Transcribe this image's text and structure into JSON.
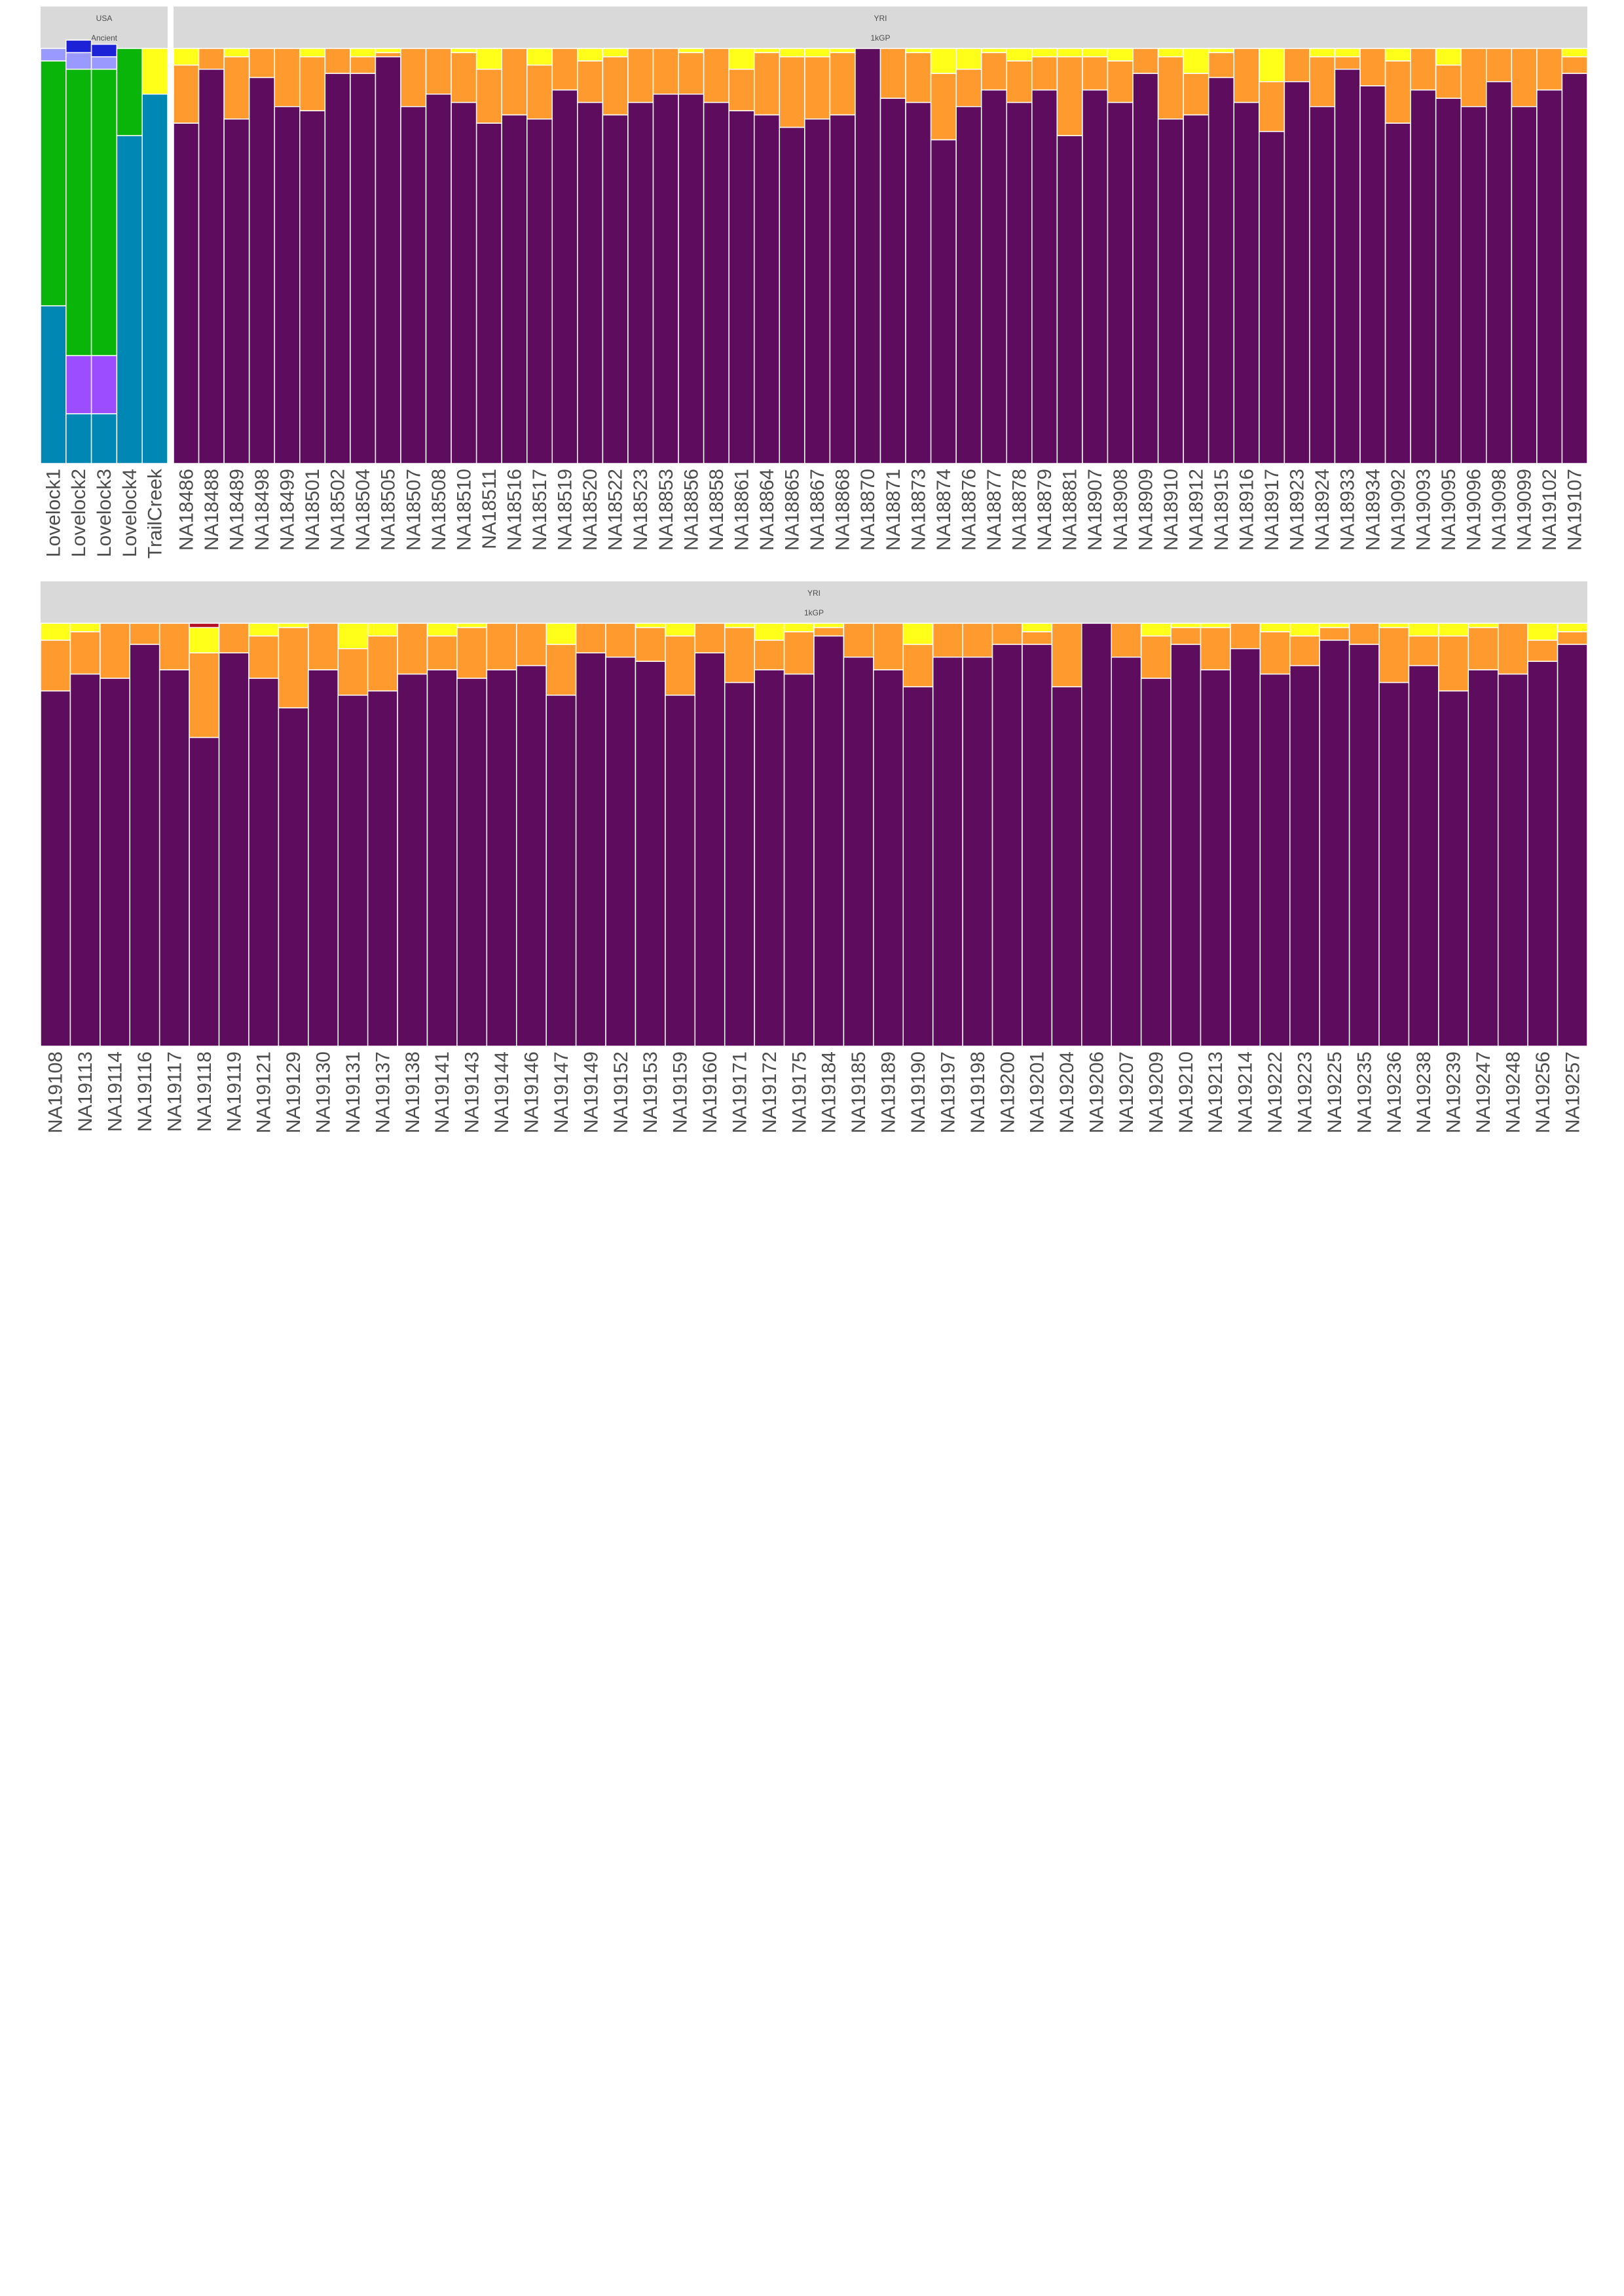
{
  "chart_data": {
    "type": "bar",
    "stacked": true,
    "normalized": true,
    "component_colors": {
      "lightblue": "#9999ff",
      "blue": "#1e22d6",
      "lavender": "#9999ff",
      "violet": "#9b4dff",
      "green": "#0ab50a",
      "teal": "#0187b4",
      "purple": "#5e0c5e",
      "orange": "#ff9a2e",
      "yellow": "#ffff1a",
      "red": "#b30e21"
    },
    "panels": [
      {
        "row": 0,
        "strip_top": "USA",
        "strip_bottom": "Ancient",
        "stack_order": [
          "teal",
          "violet",
          "green",
          "lavender",
          "blue",
          "yellow"
        ],
        "bars": [
          {
            "id": "Lovelock1",
            "teal": 0.38,
            "violet": 0,
            "green": 0.59,
            "lavender": 0.03,
            "blue": 0,
            "yellow": 0
          },
          {
            "id": "Lovelock2",
            "teal": 0.12,
            "violet": 0.14,
            "green": 0.69,
            "lavender": 0.04,
            "blue": 0.03,
            "yellow": 0
          },
          {
            "id": "Lovelock3",
            "teal": 0.12,
            "violet": 0.14,
            "green": 0.69,
            "lavender": 0.03,
            "blue": 0.03,
            "yellow": 0
          },
          {
            "id": "Lovelock4",
            "teal": 0.79,
            "violet": 0,
            "green": 0.21,
            "lavender": 0,
            "blue": 0,
            "yellow": 0
          },
          {
            "id": "TrailCreek",
            "teal": 0.89,
            "violet": 0,
            "green": 0,
            "lavender": 0,
            "blue": 0,
            "yellow": 0.11
          }
        ]
      },
      {
        "row": 0,
        "strip_top": "YRI",
        "strip_bottom": "1kGP",
        "stack_order": [
          "purple",
          "orange",
          "yellow"
        ],
        "bars": [
          {
            "id": "NA18486",
            "purple": 0.82,
            "orange": 0.14
          },
          {
            "id": "NA18488",
            "purple": 0.95,
            "orange": 0.05
          },
          {
            "id": "NA18489",
            "purple": 0.83,
            "orange": 0.15
          },
          {
            "id": "NA18498",
            "purple": 0.93,
            "orange": 0.07
          },
          {
            "id": "NA18499",
            "purple": 0.86,
            "orange": 0.14
          },
          {
            "id": "NA18501",
            "purple": 0.85,
            "orange": 0.13
          },
          {
            "id": "NA18502",
            "purple": 0.94,
            "orange": 0.06
          },
          {
            "id": "NA18504",
            "purple": 0.94,
            "orange": 0.04
          },
          {
            "id": "NA18505",
            "purple": 0.98,
            "orange": 0.01
          },
          {
            "id": "NA18507",
            "purple": 0.86,
            "orange": 0.14
          },
          {
            "id": "NA18508",
            "purple": 0.89,
            "orange": 0.11
          },
          {
            "id": "NA18510",
            "purple": 0.87,
            "orange": 0.12
          },
          {
            "id": "NA18511",
            "purple": 0.82,
            "orange": 0.13
          },
          {
            "id": "NA18516",
            "purple": 0.84,
            "orange": 0.16
          },
          {
            "id": "NA18517",
            "purple": 0.83,
            "orange": 0.13
          },
          {
            "id": "NA18519",
            "purple": 0.9,
            "orange": 0.1
          },
          {
            "id": "NA18520",
            "purple": 0.87,
            "orange": 0.1
          },
          {
            "id": "NA18522",
            "purple": 0.84,
            "orange": 0.14
          },
          {
            "id": "NA18523",
            "purple": 0.87,
            "orange": 0.13
          },
          {
            "id": "NA18853",
            "purple": 0.89,
            "orange": 0.11
          },
          {
            "id": "NA18856",
            "purple": 0.89,
            "orange": 0.1
          },
          {
            "id": "NA18858",
            "purple": 0.87,
            "orange": 0.13
          },
          {
            "id": "NA18861",
            "purple": 0.85,
            "orange": 0.1
          },
          {
            "id": "NA18864",
            "purple": 0.84,
            "orange": 0.15
          },
          {
            "id": "NA18865",
            "purple": 0.81,
            "orange": 0.17
          },
          {
            "id": "NA18867",
            "purple": 0.83,
            "orange": 0.15
          },
          {
            "id": "NA18868",
            "purple": 0.84,
            "orange": 0.15
          },
          {
            "id": "NA18870",
            "purple": 1.0,
            "orange": 0
          },
          {
            "id": "NA18871",
            "purple": 0.88,
            "orange": 0.12
          },
          {
            "id": "NA18873",
            "purple": 0.87,
            "orange": 0.12
          },
          {
            "id": "NA18874",
            "purple": 0.78,
            "orange": 0.16
          },
          {
            "id": "NA18876",
            "purple": 0.86,
            "orange": 0.09
          },
          {
            "id": "NA18877",
            "purple": 0.9,
            "orange": 0.09
          },
          {
            "id": "NA18878",
            "purple": 0.87,
            "orange": 0.1
          },
          {
            "id": "NA18879",
            "purple": 0.9,
            "orange": 0.08
          },
          {
            "id": "NA18881",
            "purple": 0.79,
            "orange": 0.19
          },
          {
            "id": "NA18907",
            "purple": 0.9,
            "orange": 0.08
          },
          {
            "id": "NA18908",
            "purple": 0.87,
            "orange": 0.1
          },
          {
            "id": "NA18909",
            "purple": 0.94,
            "orange": 0.06
          },
          {
            "id": "NA18910",
            "purple": 0.83,
            "orange": 0.15
          },
          {
            "id": "NA18912",
            "purple": 0.84,
            "orange": 0.1
          },
          {
            "id": "NA18915",
            "purple": 0.93,
            "orange": 0.06
          },
          {
            "id": "NA18916",
            "purple": 0.87,
            "orange": 0.13
          },
          {
            "id": "NA18917",
            "purple": 0.8,
            "orange": 0.12
          },
          {
            "id": "NA18923",
            "purple": 0.92,
            "orange": 0.08
          },
          {
            "id": "NA18924",
            "purple": 0.86,
            "orange": 0.12
          },
          {
            "id": "NA18933",
            "purple": 0.95,
            "orange": 0.03
          },
          {
            "id": "NA18934",
            "purple": 0.91,
            "orange": 0.09
          },
          {
            "id": "NA19092",
            "purple": 0.82,
            "orange": 0.15
          },
          {
            "id": "NA19093",
            "purple": 0.9,
            "orange": 0.1
          },
          {
            "id": "NA19095",
            "purple": 0.88,
            "orange": 0.08
          },
          {
            "id": "NA19096",
            "purple": 0.86,
            "orange": 0.14
          },
          {
            "id": "NA19098",
            "purple": 0.92,
            "orange": 0.08
          },
          {
            "id": "NA19099",
            "purple": 0.86,
            "orange": 0.14
          },
          {
            "id": "NA19102",
            "purple": 0.9,
            "orange": 0.1
          },
          {
            "id": "NA19107",
            "purple": 0.94,
            "orange": 0.04
          }
        ]
      },
      {
        "row": 1,
        "strip_top": "YRI",
        "strip_bottom": "1kGP",
        "stack_order": [
          "purple",
          "orange",
          "yellow",
          "red"
        ],
        "bars": [
          {
            "id": "NA19108",
            "purple": 0.84,
            "orange": 0.12
          },
          {
            "id": "NA19113",
            "purple": 0.88,
            "orange": 0.1
          },
          {
            "id": "NA19114",
            "purple": 0.87,
            "orange": 0.13
          },
          {
            "id": "NA19116",
            "purple": 0.95,
            "orange": 0.05
          },
          {
            "id": "NA19117",
            "purple": 0.89,
            "orange": 0.11
          },
          {
            "id": "NA19118",
            "purple": 0.73,
            "orange": 0.2,
            "yellow": 0.06,
            "red": 0.01
          },
          {
            "id": "NA19119",
            "purple": 0.93,
            "orange": 0.07
          },
          {
            "id": "NA19121",
            "purple": 0.87,
            "orange": 0.1
          },
          {
            "id": "NA19129",
            "purple": 0.8,
            "orange": 0.19
          },
          {
            "id": "NA19130",
            "purple": 0.89,
            "orange": 0.11
          },
          {
            "id": "NA19131",
            "purple": 0.83,
            "orange": 0.11
          },
          {
            "id": "NA19137",
            "purple": 0.84,
            "orange": 0.13
          },
          {
            "id": "NA19138",
            "purple": 0.88,
            "orange": 0.12
          },
          {
            "id": "NA19141",
            "purple": 0.89,
            "orange": 0.08
          },
          {
            "id": "NA19143",
            "purple": 0.87,
            "orange": 0.12
          },
          {
            "id": "NA19144",
            "purple": 0.89,
            "orange": 0.11
          },
          {
            "id": "NA19146",
            "purple": 0.9,
            "orange": 0.1
          },
          {
            "id": "NA19147",
            "purple": 0.83,
            "orange": 0.12
          },
          {
            "id": "NA19149",
            "purple": 0.93,
            "orange": 0.07
          },
          {
            "id": "NA19152",
            "purple": 0.92,
            "orange": 0.08
          },
          {
            "id": "NA19153",
            "purple": 0.91,
            "orange": 0.08
          },
          {
            "id": "NA19159",
            "purple": 0.83,
            "orange": 0.14
          },
          {
            "id": "NA19160",
            "purple": 0.93,
            "orange": 0.07
          },
          {
            "id": "NA19171",
            "purple": 0.86,
            "orange": 0.13
          },
          {
            "id": "NA19172",
            "purple": 0.89,
            "orange": 0.07
          },
          {
            "id": "NA19175",
            "purple": 0.88,
            "orange": 0.1
          },
          {
            "id": "NA19184",
            "purple": 0.97,
            "orange": 0.02
          },
          {
            "id": "NA19185",
            "purple": 0.92,
            "orange": 0.08
          },
          {
            "id": "NA19189",
            "purple": 0.89,
            "orange": 0.11
          },
          {
            "id": "NA19190",
            "purple": 0.85,
            "orange": 0.1
          },
          {
            "id": "NA19197",
            "purple": 0.92,
            "orange": 0.08
          },
          {
            "id": "NA19198",
            "purple": 0.92,
            "orange": 0.08
          },
          {
            "id": "NA19200",
            "purple": 0.95,
            "orange": 0.05
          },
          {
            "id": "NA19201",
            "purple": 0.95,
            "orange": 0.03
          },
          {
            "id": "NA19204",
            "purple": 0.85,
            "orange": 0.15
          },
          {
            "id": "NA19206",
            "purple": 1.0,
            "orange": 0
          },
          {
            "id": "NA19207",
            "purple": 0.92,
            "orange": 0.08
          },
          {
            "id": "NA19209",
            "purple": 0.87,
            "orange": 0.1
          },
          {
            "id": "NA19210",
            "purple": 0.95,
            "orange": 0.04
          },
          {
            "id": "NA19213",
            "purple": 0.89,
            "orange": 0.1
          },
          {
            "id": "NA19214",
            "purple": 0.94,
            "orange": 0.06
          },
          {
            "id": "NA19222",
            "purple": 0.88,
            "orange": 0.1
          },
          {
            "id": "NA19223",
            "purple": 0.9,
            "orange": 0.07
          },
          {
            "id": "NA19225",
            "purple": 0.96,
            "orange": 0.03
          },
          {
            "id": "NA19235",
            "purple": 0.95,
            "orange": 0.05
          },
          {
            "id": "NA19236",
            "purple": 0.86,
            "orange": 0.13
          },
          {
            "id": "NA19238",
            "purple": 0.9,
            "orange": 0.07
          },
          {
            "id": "NA19239",
            "purple": 0.84,
            "orange": 0.13
          },
          {
            "id": "NA19247",
            "purple": 0.89,
            "orange": 0.1
          },
          {
            "id": "NA19248",
            "purple": 0.88,
            "orange": 0.12
          },
          {
            "id": "NA19256",
            "purple": 0.91,
            "orange": 0.05
          },
          {
            "id": "NA19257",
            "purple": 0.95,
            "orange": 0.03
          }
        ]
      }
    ]
  }
}
